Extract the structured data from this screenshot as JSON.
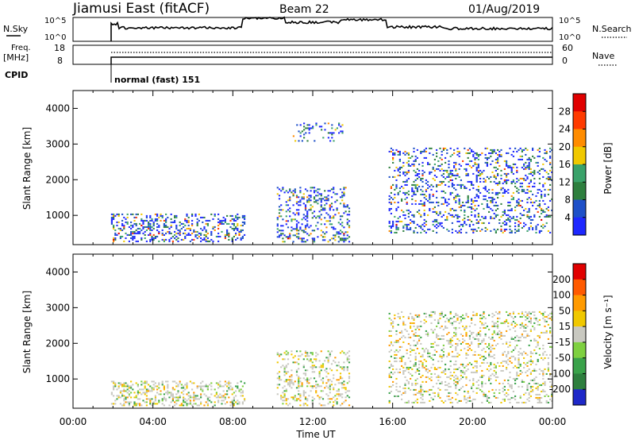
{
  "header": {
    "station": "Jiamusi East (fitACF)",
    "beam": "Beam 22",
    "date": "01/Aug/2019"
  },
  "top_panels": {
    "nsky_label": "N.Sky",
    "nsky_ticks": [
      "10^5",
      "10^0"
    ],
    "nsearch_label": "N.Search",
    "nsearch_ticks": [
      "10^5",
      "10^0"
    ],
    "freq_label": "Freq.",
    "freq_unit": "[MHz]",
    "freq_ticks": [
      "18",
      "8"
    ],
    "nave_label": "Nave",
    "nave_ticks": [
      "60",
      "0"
    ],
    "cpid_label": "CPID",
    "cpid_value": "normal (fast) 151"
  },
  "chart_data": [
    {
      "type": "heatmap",
      "panel": "power",
      "ylabel": "Slant Range [km]",
      "xlabel": "",
      "x_ticks": [
        "00:00",
        "04:00",
        "08:00",
        "12:00",
        "16:00",
        "20:00",
        "00:00"
      ],
      "xlim_hours": [
        0,
        24
      ],
      "y_ticks": [
        1000,
        2000,
        3000,
        4000
      ],
      "ylim": [
        180,
        4500
      ],
      "colorbar_label": "Power [dB]",
      "colorbar_ticks": [
        4,
        8,
        12,
        16,
        20,
        24,
        28
      ],
      "colorbar_colors": [
        "#1e28ff",
        "#1e50c8",
        "#2e7f3e",
        "#3aa26a",
        "#f0c800",
        "#ff8c00",
        "#ff3a00",
        "#e00000"
      ],
      "regions": [
        {
          "t0": 1.9,
          "t1": 8.6,
          "r0": 280,
          "r1": 1050,
          "density": 0.55
        },
        {
          "t0": 10.2,
          "t1": 13.8,
          "r0": 250,
          "r1": 1800,
          "density": 0.45
        },
        {
          "t0": 11.0,
          "t1": 13.5,
          "r0": 3100,
          "r1": 3600,
          "density": 0.35
        },
        {
          "t0": 15.8,
          "t1": 24.0,
          "r0": 500,
          "r1": 2900,
          "density": 0.4
        }
      ]
    },
    {
      "type": "heatmap",
      "panel": "velocity",
      "ylabel": "Slant Range [km]",
      "xlabel": "Time UT",
      "x_ticks": [
        "00:00",
        "04:00",
        "08:00",
        "12:00",
        "16:00",
        "20:00",
        "00:00"
      ],
      "xlim_hours": [
        0,
        24
      ],
      "y_ticks": [
        1000,
        2000,
        3000,
        4000
      ],
      "ylim": [
        180,
        4500
      ],
      "colorbar_label": "Velocity [m s⁻¹]",
      "colorbar_ticks": [
        200,
        100,
        50,
        15,
        -15,
        -50,
        -100,
        -200
      ],
      "colorbar_colors": [
        "#1e28c8",
        "#2e7f3e",
        "#3aa24a",
        "#7ed040",
        "#c8c8c0",
        "#f0c800",
        "#ff9a00",
        "#ff5a00",
        "#e00000"
      ],
      "regions": [
        {
          "t0": 1.9,
          "t1": 8.6,
          "r0": 250,
          "r1": 950,
          "density": 0.6
        },
        {
          "t0": 10.2,
          "t1": 13.8,
          "r0": 250,
          "r1": 1800,
          "density": 0.45
        },
        {
          "t0": 15.8,
          "t1": 24.0,
          "r0": 350,
          "r1": 2900,
          "density": 0.4
        }
      ]
    }
  ]
}
